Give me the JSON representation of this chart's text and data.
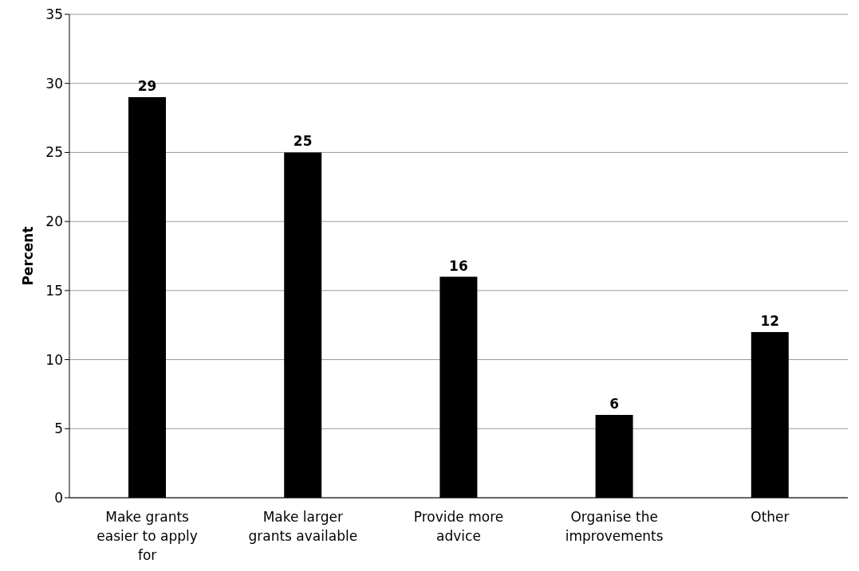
{
  "chart_data": {
    "type": "bar",
    "ylabel": "Percent",
    "categories": [
      "Make grants easier to apply for",
      "Make larger grants available",
      "Provide more advice",
      "Organise the improvements",
      "Other"
    ],
    "values": [
      29,
      25,
      16,
      6,
      12
    ],
    "color": "#000000",
    "ylim": [
      0,
      35
    ],
    "yticks": [
      0,
      5,
      10,
      15,
      20,
      25,
      30,
      35
    ],
    "grid": "y",
    "data_labels": true
  }
}
